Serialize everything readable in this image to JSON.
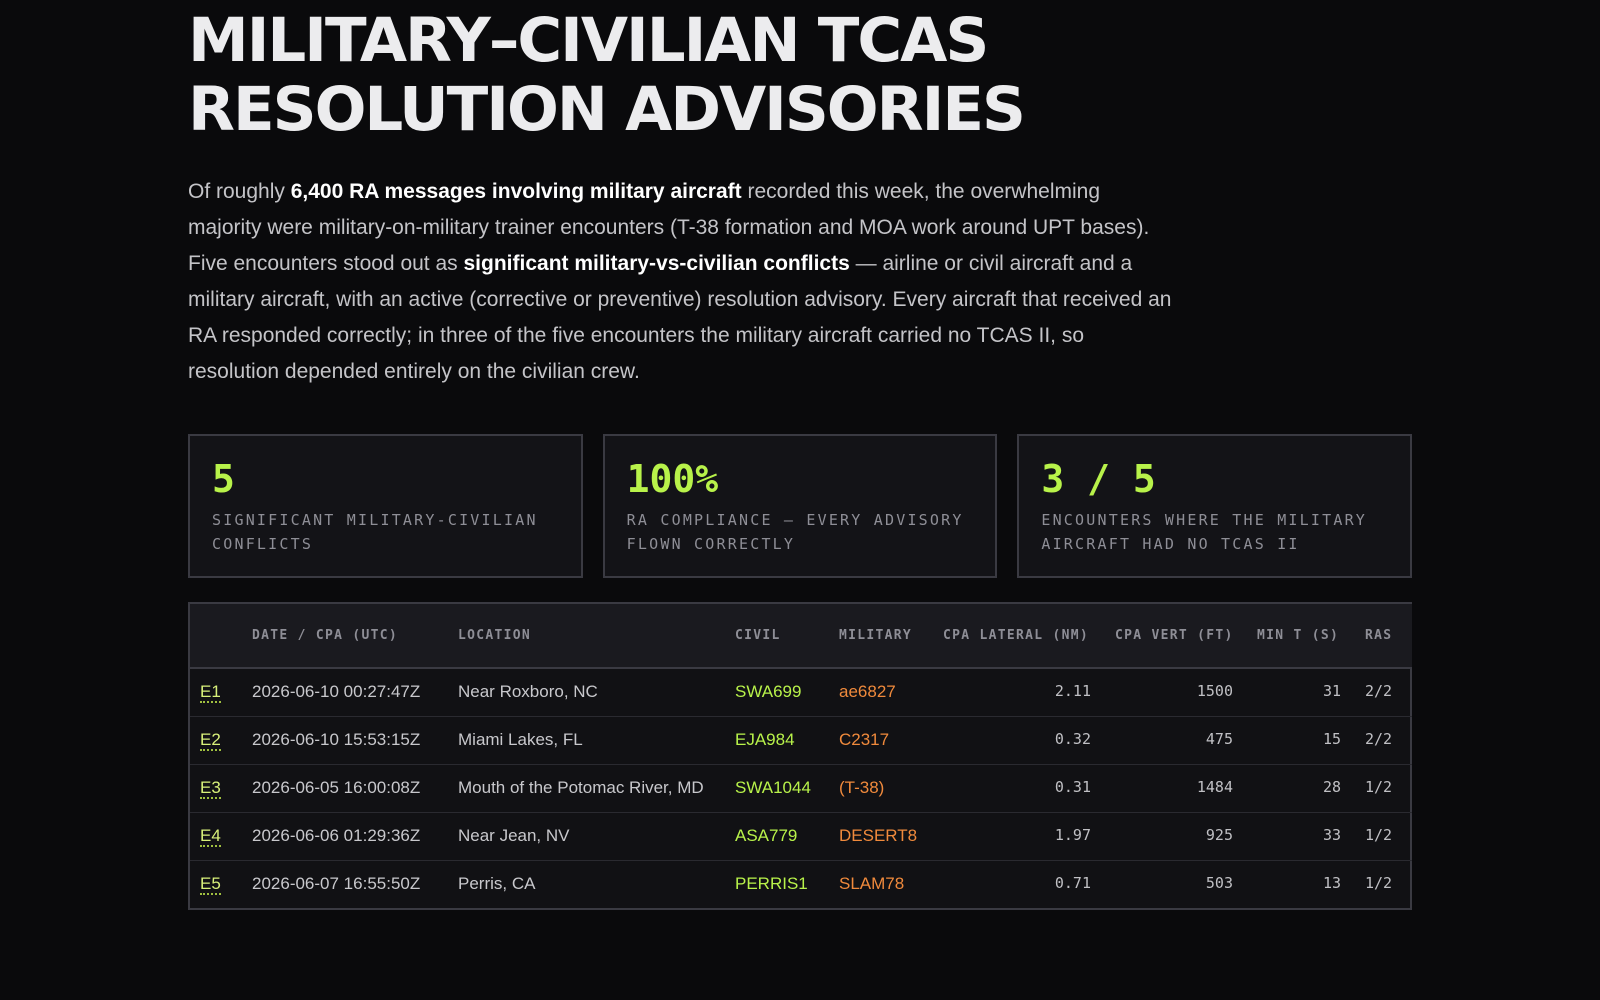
{
  "header": {
    "title": "MILITARY–CIVILIAN TCAS RESOLUTION ADVISORIES"
  },
  "intro": {
    "p1": "Of roughly ",
    "b1": "6,400 RA messages involving military aircraft",
    "p2": " recorded this week, the overwhelming majority were military-on-military trainer encounters (T-38 formation and MOA work around UPT bases). Five encounters stood out as ",
    "b2": "significant military-vs-civilian conflicts",
    "p3": " — airline or civil aircraft and a military aircraft, with an active (corrective or preventive) resolution advisory. Every aircraft that received an RA responded correctly; in three of the five encounters the military aircraft carried no TCAS II, so resolution depended entirely on the civilian crew."
  },
  "stats": [
    {
      "value": "5",
      "label": "SIGNIFICANT MILITARY-CIVILIAN CONFLICTS"
    },
    {
      "value": "100%",
      "label": "RA COMPLIANCE — EVERY ADVISORY FLOWN CORRECTLY"
    },
    {
      "value": "3 / 5",
      "label": "ENCOUNTERS WHERE THE MILITARY AIRCRAFT HAD NO TCAS II"
    }
  ],
  "table": {
    "columns": [
      "",
      "DATE / CPA (UTC)",
      "LOCATION",
      "CIVIL",
      "MILITARY",
      "CPA LATERAL (NM)",
      "CPA VERT (FT)",
      "MIN T (S)",
      "RAS"
    ],
    "rows": [
      {
        "id": "E1",
        "date": "2026-06-10 00:27:47Z",
        "location": "Near Roxboro, NC",
        "civil": "SWA699",
        "military": "ae6827",
        "lateral": "2.11",
        "vert": "1500",
        "mint": "31",
        "ras": "2/2"
      },
      {
        "id": "E2",
        "date": "2026-06-10 15:53:15Z",
        "location": "Miami Lakes, FL",
        "civil": "EJA984",
        "military": "C2317",
        "lateral": "0.32",
        "vert": "475",
        "mint": "15",
        "ras": "2/2"
      },
      {
        "id": "E3",
        "date": "2026-06-05 16:00:08Z",
        "location": "Mouth of the Potomac River, MD",
        "civil": "SWA1044",
        "military": "(T-38)",
        "lateral": "0.31",
        "vert": "1484",
        "mint": "28",
        "ras": "1/2"
      },
      {
        "id": "E4",
        "date": "2026-06-06 01:29:36Z",
        "location": "Near Jean, NV",
        "civil": "ASA779",
        "military": "DESERT8",
        "lateral": "1.97",
        "vert": "925",
        "mint": "33",
        "ras": "1/2"
      },
      {
        "id": "E5",
        "date": "2026-06-07 16:55:50Z",
        "location": "Perris, CA",
        "civil": "PERRIS1",
        "military": "SLAM78",
        "lateral": "0.71",
        "vert": "503",
        "mint": "13",
        "ras": "1/2"
      }
    ]
  },
  "colors": {
    "accent_green": "#b8f24a",
    "military_orange": "#f08a3c",
    "background": "#0a0a0c"
  }
}
